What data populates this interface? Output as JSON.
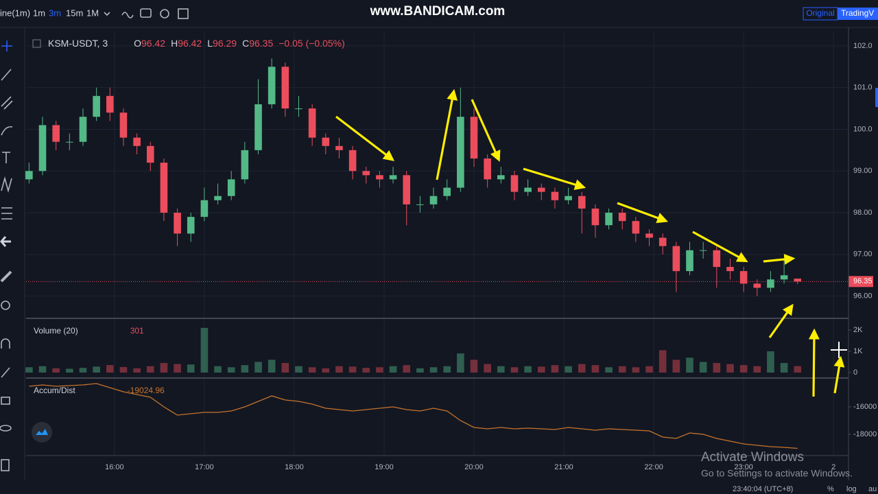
{
  "toolbar": {
    "interval": "ine(1m)",
    "buttons": [
      "1m",
      "3m",
      "15m",
      "1M"
    ],
    "watermark": "www.BANDICAM.com",
    "view_original": "Original",
    "view_tv": "TradingV"
  },
  "chart_data": {
    "type": "candlestick",
    "header": {
      "symbol": "KSM-USDT, 3",
      "ohlc": [
        {
          "key": "O",
          "value": "96.42"
        },
        {
          "key": "H",
          "value": "96.42"
        },
        {
          "key": "L",
          "value": "96.29"
        },
        {
          "key": "C",
          "value": "96.35"
        }
      ],
      "change": "−0.05 (−0.05%)"
    },
    "up_color": "#53b987",
    "down_color": "#eb4d5c",
    "x": [
      903,
      912,
      921,
      930,
      939,
      948,
      957,
      966,
      975,
      984,
      993,
      1002,
      1011,
      1020,
      1029,
      1038,
      1047,
      1056,
      1065,
      1074,
      1083,
      1092,
      1101,
      1110,
      1119,
      1128,
      1137,
      1146,
      1155,
      1164,
      1173,
      1182,
      1191,
      1200,
      1209,
      1218,
      1227,
      1236,
      1245,
      1254,
      1263,
      1272,
      1281,
      1290,
      1299,
      1308,
      1317,
      1326,
      1335,
      1344,
      1353,
      1362,
      1371,
      1380,
      1389,
      1398,
      1407,
      1416
    ],
    "open": [
      98.8,
      99.0,
      100.1,
      99.7,
      99.7,
      100.3,
      100.8,
      100.4,
      99.8,
      99.6,
      99.2,
      98.0,
      97.5,
      97.9,
      98.3,
      98.4,
      98.8,
      99.5,
      100.6,
      101.5,
      100.5,
      100.5,
      99.8,
      99.6,
      99.5,
      99.0,
      98.9,
      98.8,
      98.9,
      98.2,
      98.2,
      98.4,
      98.6,
      100.3,
      99.3,
      98.8,
      98.9,
      98.5,
      98.6,
      98.5,
      98.3,
      98.4,
      98.1,
      97.7,
      98.0,
      97.8,
      97.5,
      97.4,
      97.2,
      96.6,
      97.1,
      97.1,
      96.7,
      96.6,
      96.3,
      96.2,
      96.4,
      96.42
    ],
    "high": [
      99.2,
      100.3,
      100.2,
      99.9,
      100.5,
      101.0,
      101.0,
      100.5,
      99.9,
      99.7,
      99.3,
      98.1,
      98.0,
      98.6,
      98.7,
      99.0,
      99.7,
      101.2,
      101.7,
      101.6,
      100.8,
      100.6,
      99.9,
      99.8,
      99.6,
      99.1,
      99.0,
      99.1,
      99.0,
      98.4,
      98.6,
      98.8,
      101.0,
      100.5,
      99.4,
      99.1,
      99.0,
      98.8,
      98.7,
      98.6,
      98.6,
      98.5,
      98.2,
      98.1,
      98.1,
      97.9,
      97.6,
      97.5,
      97.3,
      97.3,
      97.3,
      97.2,
      96.9,
      96.7,
      96.4,
      96.6,
      96.9,
      96.42
    ],
    "low": [
      98.7,
      98.9,
      99.5,
      99.5,
      99.6,
      100.2,
      100.2,
      99.6,
      99.4,
      99.0,
      97.8,
      97.2,
      97.3,
      97.8,
      98.2,
      98.3,
      98.7,
      99.4,
      100.5,
      100.3,
      100.3,
      99.6,
      99.4,
      99.3,
      98.8,
      98.7,
      98.6,
      98.7,
      97.7,
      98.0,
      98.1,
      98.3,
      98.5,
      99.1,
      98.6,
      98.7,
      98.3,
      98.4,
      98.3,
      98.1,
      98.2,
      97.5,
      97.4,
      97.6,
      97.6,
      97.3,
      97.2,
      97.0,
      96.1,
      96.5,
      96.9,
      96.2,
      96.4,
      96.1,
      96.0,
      96.1,
      96.3,
      96.29
    ],
    "close": [
      99.0,
      100.1,
      99.7,
      99.7,
      100.3,
      100.8,
      100.4,
      99.8,
      99.6,
      99.2,
      98.0,
      97.5,
      97.9,
      98.3,
      98.4,
      98.8,
      99.5,
      100.6,
      101.5,
      100.5,
      100.5,
      99.8,
      99.6,
      99.5,
      99.0,
      98.9,
      98.8,
      98.9,
      98.2,
      98.2,
      98.4,
      98.6,
      100.3,
      99.3,
      98.8,
      98.9,
      98.5,
      98.6,
      98.5,
      98.3,
      98.4,
      98.1,
      97.7,
      98.0,
      97.8,
      97.5,
      97.4,
      97.2,
      96.6,
      97.1,
      97.1,
      96.7,
      96.6,
      96.3,
      96.2,
      96.4,
      96.5,
      96.35
    ],
    "last_price": 96.35,
    "xlim": [
      901,
      1450
    ],
    "xticks": [
      {
        "value": 960,
        "label": "16:00"
      },
      {
        "value": 1020,
        "label": "17:00"
      },
      {
        "value": 1080,
        "label": "18:00"
      },
      {
        "value": 1140,
        "label": "19:00"
      },
      {
        "value": 1200,
        "label": "20:00"
      },
      {
        "value": 1260,
        "label": "21:00"
      },
      {
        "value": 1320,
        "label": "22:00"
      },
      {
        "value": 1380,
        "label": "23:00"
      },
      {
        "value": 1440,
        "label": "2"
      }
    ],
    "ylim": [
      95.5,
      102.36
    ],
    "yticks": [
      {
        "value": 102,
        "label": "102.0"
      },
      {
        "value": 101,
        "label": "101.0"
      },
      {
        "value": 100,
        "label": "100.0"
      },
      {
        "value": 99,
        "label": "99.00"
      },
      {
        "value": 98,
        "label": "98.00"
      },
      {
        "value": 97,
        "label": "97.00"
      },
      {
        "value": 96,
        "label": "96.00"
      }
    ],
    "volume": {
      "title": "Volume (20)",
      "legend_value": "301",
      "ylim": [
        -161,
        2355
      ],
      "yticks": [
        {
          "value": 2000,
          "label": "2K"
        },
        {
          "value": 1000,
          "label": "1K"
        },
        0
      ],
      "values": [
        250,
        300,
        200,
        180,
        220,
        280,
        350,
        260,
        200,
        300,
        450,
        400,
        380,
        2100,
        300,
        250,
        350,
        500,
        600,
        450,
        300,
        250,
        200,
        300,
        280,
        220,
        250,
        300,
        350,
        200,
        250,
        300,
        900,
        600,
        400,
        300,
        250,
        300,
        280,
        350,
        300,
        400,
        350,
        250,
        300,
        250,
        300,
        1050,
        600,
        700,
        500,
        450,
        400,
        350,
        300,
        1000,
        450,
        301
      ]
    },
    "accum": {
      "title": "Accum/Dist",
      "legend_value": "-19024.96",
      "color": "#c8742c",
      "ylim": [
        -19500,
        -14150
      ],
      "yticks": [
        -16000,
        -18000
      ],
      "values": [
        -14500,
        -14400,
        -14500,
        -14450,
        -14400,
        -14300,
        -14600,
        -14900,
        -15100,
        -15300,
        -16000,
        -16600,
        -16500,
        -16400,
        -16400,
        -16300,
        -16000,
        -15600,
        -15200,
        -15500,
        -15600,
        -15800,
        -16100,
        -16200,
        -16300,
        -16200,
        -16100,
        -16000,
        -16200,
        -16300,
        -16100,
        -16300,
        -17000,
        -17500,
        -17600,
        -17500,
        -17600,
        -17550,
        -17600,
        -17650,
        -17500,
        -17600,
        -17700,
        -17600,
        -17650,
        -17700,
        -17750,
        -18200,
        -18300,
        -17900,
        -18000,
        -18300,
        -18500,
        -18700,
        -18800,
        -18900,
        -18950,
        -19024.96
      ]
    }
  },
  "statusbar": {
    "clock": "23:40:04 (UTC+8)",
    "percent": "%",
    "log": "log",
    "auto": "au"
  },
  "windows_notice": {
    "title": "Activate Windows",
    "text": "Go to Settings to activate Windows."
  }
}
